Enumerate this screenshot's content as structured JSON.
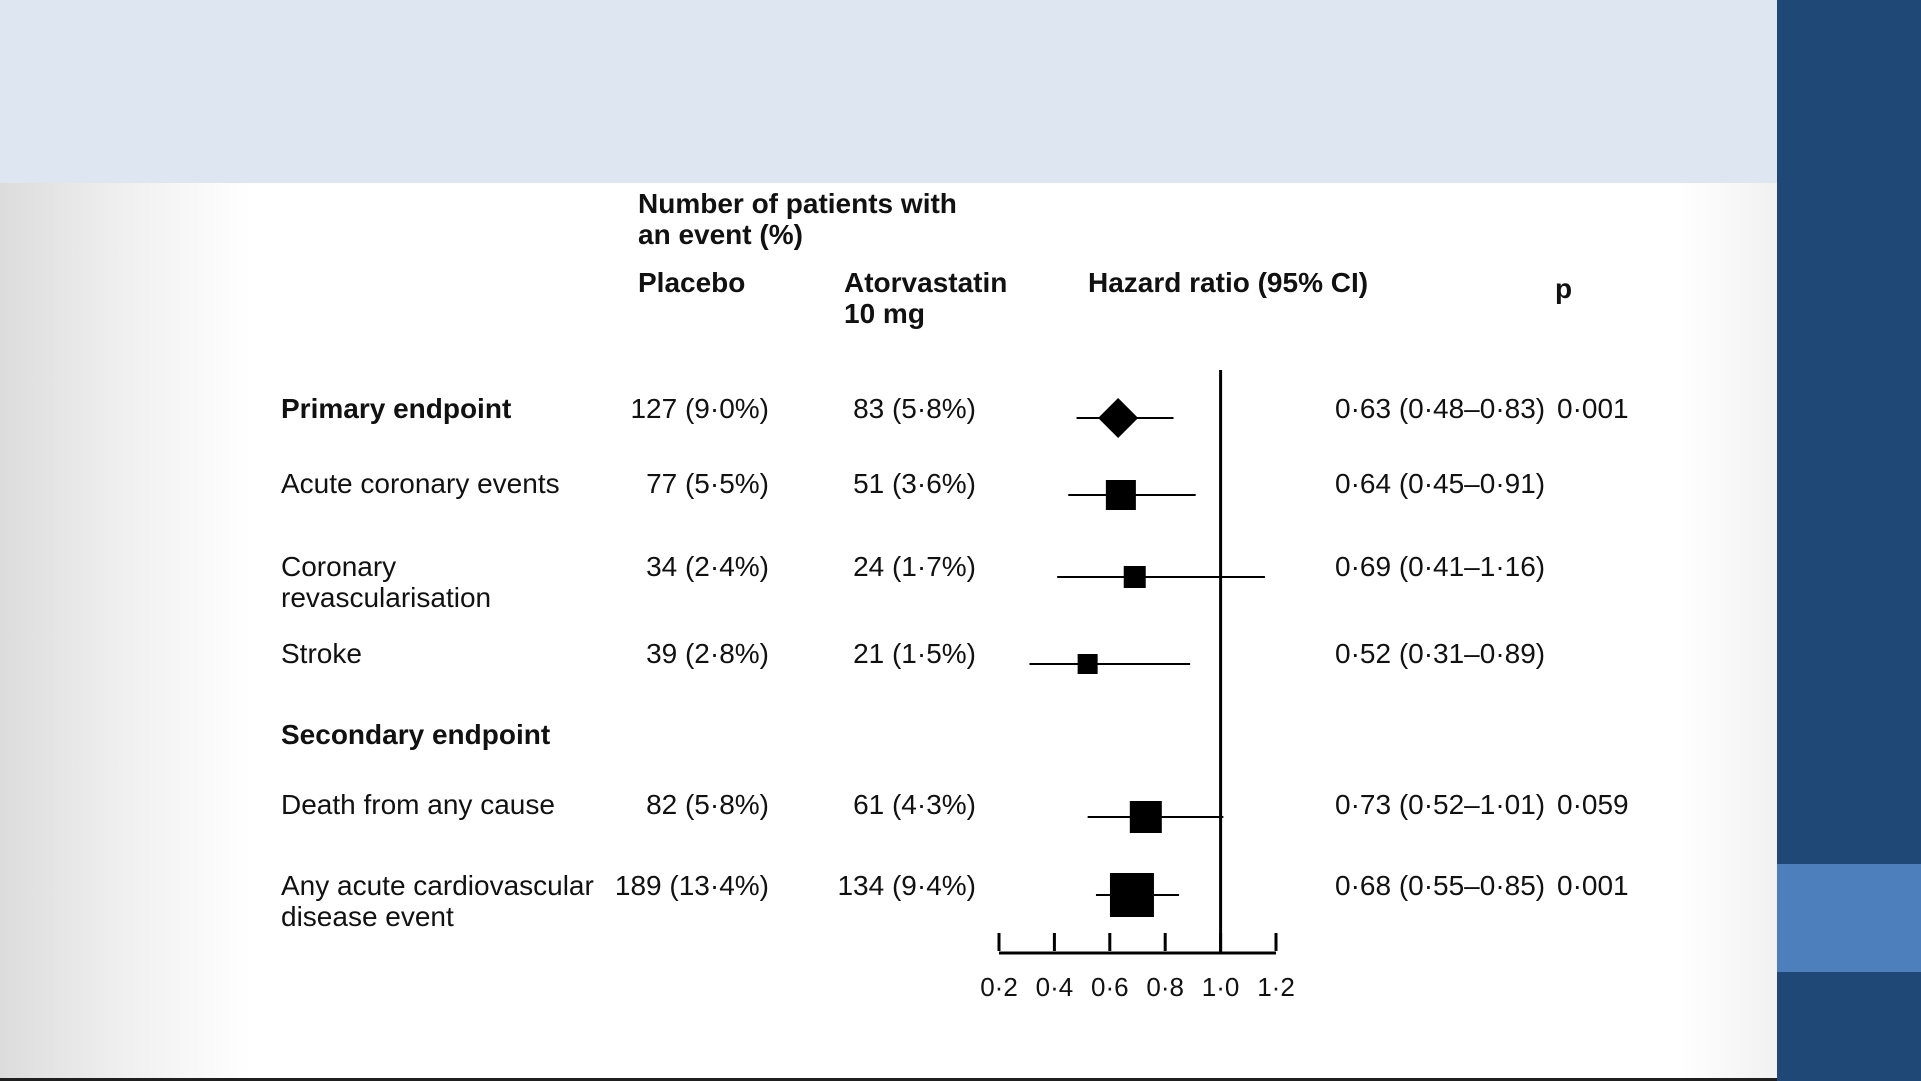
{
  "headers": {
    "group": [
      "Number of patients with",
      "an event (%)"
    ],
    "placebo": [
      "Placebo"
    ],
    "atorvastatin": [
      "Atorvastatin",
      "10 mg"
    ],
    "hazard_ratio": [
      "Hazard ratio (95% CI)"
    ],
    "p": [
      "p"
    ]
  },
  "rows": [
    {
      "label": [
        "Primary endpoint"
      ],
      "bold": true,
      "placebo": "127 (9·0%)",
      "atorvastatin": "83 (5·8%)",
      "hr_text": "0·63 (0·48–0·83)",
      "p": "0·001"
    },
    {
      "label": [
        "Acute coronary events"
      ],
      "bold": false,
      "placebo": "77 (5·5%)",
      "atorvastatin": "51 (3·6%)",
      "hr_text": "0·64 (0·45–0·91)",
      "p": ""
    },
    {
      "label": [
        "Coronary",
        "revascularisation"
      ],
      "bold": false,
      "placebo": "34 (2·4%)",
      "atorvastatin": "24 (1·7%)",
      "hr_text": "0·69 (0·41–1·16)",
      "p": ""
    },
    {
      "label": [
        "Stroke"
      ],
      "bold": false,
      "placebo": "39 (2·8%)",
      "atorvastatin": "21 (1·5%)",
      "hr_text": "0·52 (0·31–0·89)",
      "p": ""
    },
    {
      "label": [
        "Secondary endpoint"
      ],
      "bold": true,
      "placebo": "",
      "atorvastatin": "",
      "hr_text": "",
      "p": ""
    },
    {
      "label": [
        "Death from any cause"
      ],
      "bold": false,
      "placebo": "82 (5·8%)",
      "atorvastatin": "61 (4·3%)",
      "hr_text": "0·73 (0·52–1·01)",
      "p": "0·059"
    },
    {
      "label": [
        "Any acute cardiovascular",
        "disease event"
      ],
      "bold": false,
      "placebo": "189 (13·4%)",
      "atorvastatin": "134 (9·4%)",
      "hr_text": "0·68 (0·55–0·85)",
      "p": "0·001"
    }
  ],
  "chart_data": {
    "type": "forest",
    "x_axis": {
      "ticks": [
        0.2,
        0.4,
        0.6,
        0.8,
        1.0,
        1.2
      ],
      "tick_labels": [
        "0·2",
        "0·4",
        "0·6",
        "0·8",
        "1·0",
        "1·2"
      ],
      "range": [
        0.2,
        1.2
      ],
      "reference_line": 1.0
    },
    "estimates": [
      {
        "row": 0,
        "hr": 0.63,
        "ci": [
          0.48,
          0.83
        ],
        "marker": "diamond",
        "size": 1.0
      },
      {
        "row": 1,
        "hr": 0.64,
        "ci": [
          0.45,
          0.91
        ],
        "marker": "square",
        "size": 0.75
      },
      {
        "row": 2,
        "hr": 0.69,
        "ci": [
          0.41,
          1.16
        ],
        "marker": "square",
        "size": 0.55
      },
      {
        "row": 3,
        "hr": 0.52,
        "ci": [
          0.31,
          0.89
        ],
        "marker": "square",
        "size": 0.5
      },
      {
        "row": 5,
        "hr": 0.73,
        "ci": [
          0.52,
          1.01
        ],
        "marker": "square",
        "size": 0.8
      },
      {
        "row": 6,
        "hr": 0.68,
        "ci": [
          0.55,
          0.85
        ],
        "marker": "square",
        "size": 1.1
      }
    ]
  }
}
